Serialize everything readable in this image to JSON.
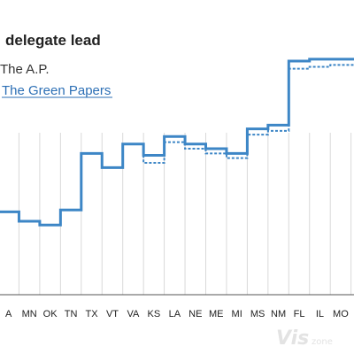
{
  "chart_data": {
    "type": "line",
    "title": "delegate lead",
    "legend": [
      {
        "label": "The A.P.",
        "style": "solid"
      },
      {
        "label": "The Green Papers",
        "style": "dashed"
      }
    ],
    "categories": [
      "A",
      "MN",
      "OK",
      "TN",
      "TX",
      "VT",
      "VA",
      "KS",
      "LA",
      "NE",
      "ME",
      "MI",
      "MS",
      "NM",
      "FL",
      "IL",
      "MO",
      ""
    ],
    "series": [
      {
        "name": "The A.P.",
        "style": "solid",
        "values": [
          88,
          78,
          74,
          90,
          150,
          135,
          160,
          148,
          168,
          160,
          155,
          150,
          176,
          180,
          248,
          250,
          250,
          250
        ]
      },
      {
        "name": "The Green Papers",
        "style": "dashed",
        "values": [
          88,
          78,
          74,
          90,
          150,
          135,
          160,
          140,
          162,
          155,
          150,
          145,
          170,
          174,
          240,
          242,
          244,
          244
        ]
      }
    ],
    "ylim": [
      0,
      280
    ],
    "grid": true,
    "colors": {
      "line": "#3d86c6",
      "grid": "#d9d9d9",
      "axis": "#555555"
    }
  },
  "watermark": {
    "main": "Vis",
    "sub": "zone"
  }
}
